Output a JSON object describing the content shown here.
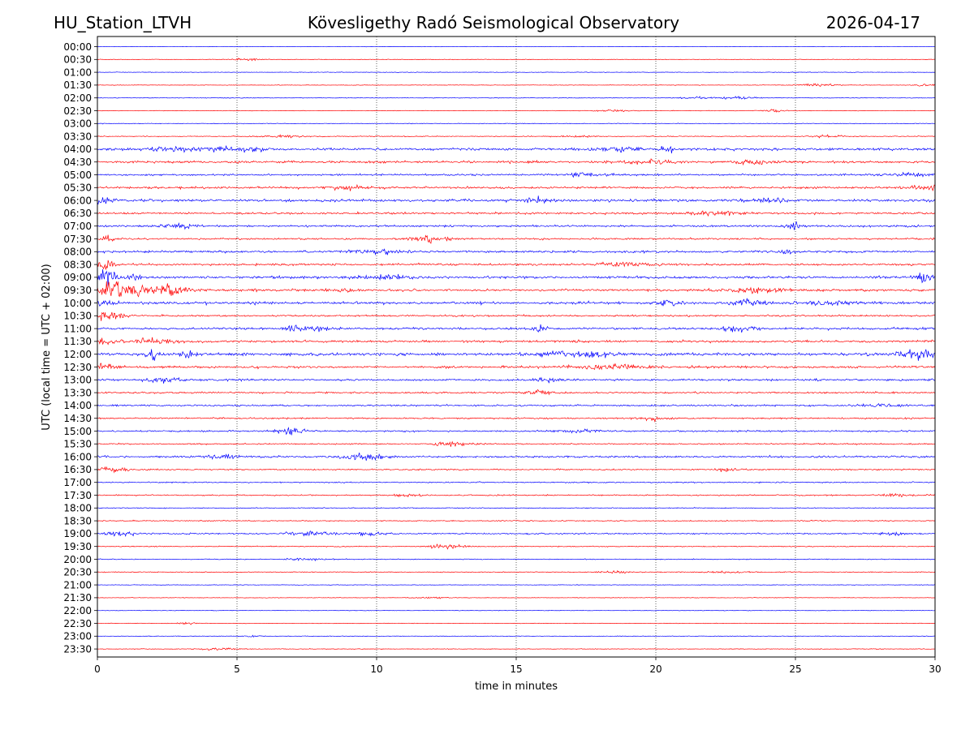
{
  "chart_data": {
    "type": "helicorder",
    "station": "HU_Station_LTVH",
    "title": "Kövesligethy Radó Seismological Observatory",
    "date": "2026-04-17",
    "xlabel": "time in minutes",
    "ylabel": "UTC (local time = UTC + 02:00)",
    "xlim": [
      0,
      30
    ],
    "x_ticks": [
      0,
      5,
      10,
      15,
      20,
      25,
      30
    ],
    "grid_x": [
      5,
      10,
      15,
      20,
      25
    ],
    "trace_colors": [
      "#0000ff",
      "#ff0000"
    ],
    "rows": [
      {
        "label": "00:00",
        "amp": 0.4
      },
      {
        "label": "00:30",
        "amp": 0.5,
        "events": [
          {
            "t": 5.3,
            "a": 2.0,
            "w": 0.5
          }
        ]
      },
      {
        "label": "01:00",
        "amp": 0.5
      },
      {
        "label": "01:30",
        "amp": 0.5,
        "events": [
          {
            "t": 25.8,
            "a": 3.0,
            "w": 0.6
          },
          {
            "t": 29.7,
            "a": 2.5,
            "w": 0.4
          }
        ]
      },
      {
        "label": "02:00",
        "amp": 0.6,
        "events": [
          {
            "t": 21.5,
            "a": 2.0,
            "w": 0.6
          },
          {
            "t": 23.0,
            "a": 3.0,
            "w": 0.6
          }
        ]
      },
      {
        "label": "02:30",
        "amp": 0.5,
        "events": [
          {
            "t": 18.5,
            "a": 1.8,
            "w": 0.6
          },
          {
            "t": 24.2,
            "a": 2.5,
            "w": 0.5
          }
        ]
      },
      {
        "label": "03:00",
        "amp": 0.6
      },
      {
        "label": "03:30",
        "amp": 0.8,
        "events": [
          {
            "t": 6.6,
            "a": 2.5,
            "w": 0.8
          },
          {
            "t": 17.2,
            "a": 2.0,
            "w": 0.6
          },
          {
            "t": 26.0,
            "a": 2.0,
            "w": 0.6
          }
        ]
      },
      {
        "label": "04:00",
        "amp": 2.2,
        "events": [
          {
            "t": 2.5,
            "a": 4.0,
            "w": 0.8
          },
          {
            "t": 4.8,
            "a": 4.5,
            "w": 1.0
          },
          {
            "t": 18.5,
            "a": 4.0,
            "w": 1.0
          },
          {
            "t": 20.4,
            "a": 9.0,
            "w": 0.2
          }
        ]
      },
      {
        "label": "04:30",
        "amp": 2.0,
        "events": [
          {
            "t": 19.5,
            "a": 3.5,
            "w": 1.2
          },
          {
            "t": 23.5,
            "a": 4.0,
            "w": 0.8
          }
        ]
      },
      {
        "label": "05:00",
        "amp": 1.7,
        "events": [
          {
            "t": 17.5,
            "a": 3.0,
            "w": 1.0
          },
          {
            "t": 29.0,
            "a": 3.0,
            "w": 0.8
          }
        ]
      },
      {
        "label": "05:30",
        "amp": 2.0,
        "events": [
          {
            "t": 9.0,
            "a": 3.5,
            "w": 0.8
          },
          {
            "t": 29.5,
            "a": 4.0,
            "w": 0.6
          }
        ]
      },
      {
        "label": "06:00",
        "amp": 2.3,
        "events": [
          {
            "t": 0.2,
            "a": 4.0,
            "w": 0.5
          },
          {
            "t": 15.7,
            "a": 7.0,
            "w": 0.3
          },
          {
            "t": 24.0,
            "a": 3.5,
            "w": 0.8
          }
        ]
      },
      {
        "label": "06:30",
        "amp": 1.8,
        "events": [
          {
            "t": 22.0,
            "a": 3.0,
            "w": 1.0
          }
        ]
      },
      {
        "label": "07:00",
        "amp": 1.8,
        "events": [
          {
            "t": 2.9,
            "a": 4.5,
            "w": 0.6
          },
          {
            "t": 24.9,
            "a": 9.0,
            "w": 0.3
          }
        ]
      },
      {
        "label": "07:30",
        "amp": 1.6,
        "events": [
          {
            "t": 12.0,
            "a": 6.0,
            "w": 0.7
          },
          {
            "t": 0.3,
            "a": 6.0,
            "w": 0.3
          }
        ]
      },
      {
        "label": "08:00",
        "amp": 2.0,
        "events": [
          {
            "t": 10.0,
            "a": 4.0,
            "w": 1.0
          },
          {
            "t": 24.7,
            "a": 6.0,
            "w": 0.2
          }
        ]
      },
      {
        "label": "08:30",
        "amp": 1.8,
        "events": [
          {
            "t": 0.3,
            "a": 10.0,
            "w": 0.3
          },
          {
            "t": 18.8,
            "a": 3.5,
            "w": 1.0
          }
        ]
      },
      {
        "label": "09:00",
        "amp": 2.2,
        "events": [
          {
            "t": 0.3,
            "a": 16.0,
            "w": 0.4
          },
          {
            "t": 1.3,
            "a": 6.0,
            "w": 0.3
          },
          {
            "t": 29.6,
            "a": 9.0,
            "w": 0.3
          },
          {
            "t": 10.5,
            "a": 3.5,
            "w": 1.0
          }
        ]
      },
      {
        "label": "09:30",
        "amp": 2.2,
        "events": [
          {
            "t": 0.5,
            "a": 16.0,
            "w": 0.8
          },
          {
            "t": 1.4,
            "a": 10.0,
            "w": 0.5
          },
          {
            "t": 2.6,
            "a": 12.0,
            "w": 0.7
          },
          {
            "t": 8.9,
            "a": 4.0,
            "w": 0.3
          },
          {
            "t": 23.5,
            "a": 5.0,
            "w": 1.0
          }
        ]
      },
      {
        "label": "10:00",
        "amp": 2.3,
        "events": [
          {
            "t": 20.5,
            "a": 5.0,
            "w": 0.5
          },
          {
            "t": 23.3,
            "a": 5.5,
            "w": 0.6
          },
          {
            "t": 26.5,
            "a": 4.5,
            "w": 0.8
          },
          {
            "t": 0.3,
            "a": 8.0,
            "w": 0.3
          }
        ]
      },
      {
        "label": "10:30",
        "amp": 1.6,
        "events": [
          {
            "t": 0.3,
            "a": 10.0,
            "w": 0.3
          },
          {
            "t": 0.8,
            "a": 4.0,
            "w": 0.3
          }
        ]
      },
      {
        "label": "11:00",
        "amp": 2.0,
        "events": [
          {
            "t": 7.5,
            "a": 6.0,
            "w": 0.8
          },
          {
            "t": 15.8,
            "a": 6.0,
            "w": 0.3
          },
          {
            "t": 23.0,
            "a": 5.0,
            "w": 0.6
          }
        ]
      },
      {
        "label": "11:30",
        "amp": 2.0,
        "events": [
          {
            "t": 2.0,
            "a": 5.0,
            "w": 0.8
          },
          {
            "t": 0.3,
            "a": 7.0,
            "w": 0.3
          }
        ]
      },
      {
        "label": "12:00",
        "amp": 2.8,
        "events": [
          {
            "t": 2.0,
            "a": 16.0,
            "w": 0.2
          },
          {
            "t": 3.2,
            "a": 9.0,
            "w": 0.2
          },
          {
            "t": 17.2,
            "a": 5.0,
            "w": 1.2
          },
          {
            "t": 29.4,
            "a": 8.0,
            "w": 0.8
          }
        ]
      },
      {
        "label": "12:30",
        "amp": 2.0,
        "events": [
          {
            "t": 0.3,
            "a": 5.0,
            "w": 0.5
          },
          {
            "t": 18.5,
            "a": 5.0,
            "w": 1.2
          }
        ]
      },
      {
        "label": "13:00",
        "amp": 1.8,
        "events": [
          {
            "t": 2.4,
            "a": 6.0,
            "w": 0.6
          },
          {
            "t": 16.2,
            "a": 4.0,
            "w": 0.5
          }
        ]
      },
      {
        "label": "13:30",
        "amp": 1.5,
        "events": [
          {
            "t": 15.8,
            "a": 3.5,
            "w": 0.6
          }
        ]
      },
      {
        "label": "14:00",
        "amp": 1.5,
        "events": [
          {
            "t": 28.0,
            "a": 3.0,
            "w": 0.8
          }
        ]
      },
      {
        "label": "14:30",
        "amp": 1.4,
        "events": [
          {
            "t": 19.8,
            "a": 3.5,
            "w": 0.6
          }
        ]
      },
      {
        "label": "15:00",
        "amp": 1.5,
        "events": [
          {
            "t": 7.0,
            "a": 5.0,
            "w": 0.6
          },
          {
            "t": 17.2,
            "a": 3.5,
            "w": 0.6
          }
        ]
      },
      {
        "label": "15:30",
        "amp": 1.2,
        "events": [
          {
            "t": 12.7,
            "a": 4.0,
            "w": 0.6
          }
        ]
      },
      {
        "label": "16:00",
        "amp": 1.8,
        "events": [
          {
            "t": 4.5,
            "a": 3.5,
            "w": 0.8
          },
          {
            "t": 9.6,
            "a": 7.0,
            "w": 0.8
          }
        ]
      },
      {
        "label": "16:30",
        "amp": 1.2,
        "events": [
          {
            "t": 0.5,
            "a": 4.0,
            "w": 0.7
          },
          {
            "t": 22.5,
            "a": 2.5,
            "w": 0.6
          }
        ]
      },
      {
        "label": "17:00",
        "amp": 1.1
      },
      {
        "label": "17:30",
        "amp": 1.1,
        "events": [
          {
            "t": 11.0,
            "a": 2.5,
            "w": 0.6
          },
          {
            "t": 28.5,
            "a": 2.5,
            "w": 0.6
          }
        ]
      },
      {
        "label": "18:00",
        "amp": 0.8
      },
      {
        "label": "18:30",
        "amp": 0.9
      },
      {
        "label": "19:00",
        "amp": 1.2,
        "events": [
          {
            "t": 0.8,
            "a": 5.0,
            "w": 0.6
          },
          {
            "t": 7.6,
            "a": 4.5,
            "w": 0.8
          },
          {
            "t": 9.8,
            "a": 4.0,
            "w": 0.5
          },
          {
            "t": 28.5,
            "a": 3.0,
            "w": 0.6
          }
        ]
      },
      {
        "label": "19:30",
        "amp": 0.9,
        "events": [
          {
            "t": 12.5,
            "a": 5.0,
            "w": 0.6
          }
        ]
      },
      {
        "label": "20:00",
        "amp": 0.8,
        "events": [
          {
            "t": 7.5,
            "a": 2.0,
            "w": 0.8
          }
        ]
      },
      {
        "label": "20:30",
        "amp": 0.8,
        "events": [
          {
            "t": 18.5,
            "a": 2.5,
            "w": 0.5
          },
          {
            "t": 22.5,
            "a": 2.0,
            "w": 0.6
          }
        ]
      },
      {
        "label": "21:00",
        "amp": 0.5
      },
      {
        "label": "21:30",
        "amp": 0.5,
        "events": [
          {
            "t": 12.0,
            "a": 1.8,
            "w": 0.6
          }
        ]
      },
      {
        "label": "22:00",
        "amp": 0.5
      },
      {
        "label": "22:30",
        "amp": 0.5,
        "events": [
          {
            "t": 3.2,
            "a": 1.8,
            "w": 0.4
          }
        ]
      },
      {
        "label": "23:00",
        "amp": 0.5,
        "events": [
          {
            "t": 5.5,
            "a": 2.0,
            "w": 0.3
          }
        ]
      },
      {
        "label": "23:30",
        "amp": 0.6,
        "events": [
          {
            "t": 4.3,
            "a": 2.5,
            "w": 0.6
          }
        ]
      }
    ]
  }
}
